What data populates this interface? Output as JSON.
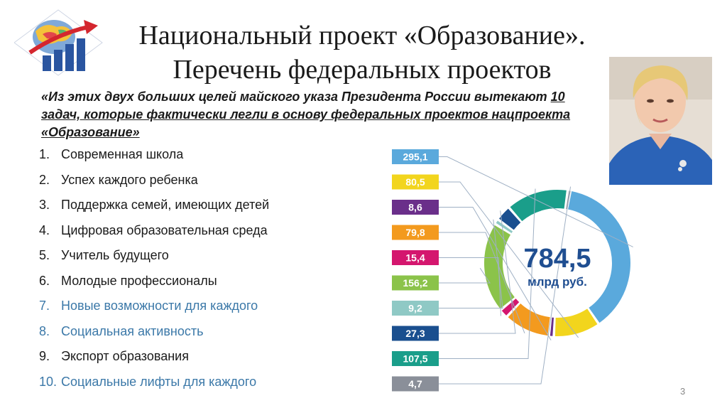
{
  "slide": {
    "title_line1": "Национальный проект «Образование».",
    "title_line2": "Перечень федеральных проектов",
    "page_number": "3"
  },
  "quote": {
    "part1": "«Из этих двух больших целей майского указа Президента России вытекают ",
    "part1_underlined": "10",
    "part2_underlined": "задач, которые фактически легли в основу федеральных проектов нацпроекта «Образование»"
  },
  "projects": [
    {
      "num": "1.",
      "label": "Современная школа",
      "highlight": false
    },
    {
      "num": "2.",
      "label": "Успех каждого ребенка",
      "highlight": false
    },
    {
      "num": "3.",
      "label": "Поддержка семей, имеющих детей",
      "highlight": false
    },
    {
      "num": "4.",
      "label": "Цифровая образовательная среда",
      "highlight": false
    },
    {
      "num": "5.",
      "label": "Учитель будущего",
      "highlight": false
    },
    {
      "num": "6.",
      "label": "Молодые профессионалы",
      "highlight": false
    },
    {
      "num": "7.",
      "label": "Новые возможности для каждого",
      "highlight": true
    },
    {
      "num": "8.",
      "label": "Социальная активность",
      "highlight": true
    },
    {
      "num": "9.",
      "label": "Экспорт образования",
      "highlight": false
    },
    {
      "num": "10.",
      "label": "Социальные лифты для каждого",
      "highlight": true
    }
  ],
  "chart_data": {
    "type": "pie",
    "center_value": "784,5",
    "center_unit": "млрд руб.",
    "total": 784.5,
    "slices": [
      {
        "label": "295,1",
        "value": 295.1,
        "color": "#5aa9dc"
      },
      {
        "label": "80,5",
        "value": 80.5,
        "color": "#f2d51d"
      },
      {
        "label": "8,6",
        "value": 8.6,
        "color": "#6a2f8a"
      },
      {
        "label": "79,8",
        "value": 79.8,
        "color": "#f39a1e"
      },
      {
        "label": "15,4",
        "value": 15.4,
        "color": "#d4166e"
      },
      {
        "label": "156,2",
        "value": 156.2,
        "color": "#8bc34a"
      },
      {
        "label": "9,2",
        "value": 9.2,
        "color": "#8fc9c5"
      },
      {
        "label": "27,3",
        "value": 27.3,
        "color": "#1a4f8f"
      },
      {
        "label": "107,5",
        "value": 107.5,
        "color": "#1a9e8a"
      },
      {
        "label": "4,7",
        "value": 4.7,
        "color": "#8a8f99"
      }
    ],
    "center_color": "#1f4e91"
  }
}
